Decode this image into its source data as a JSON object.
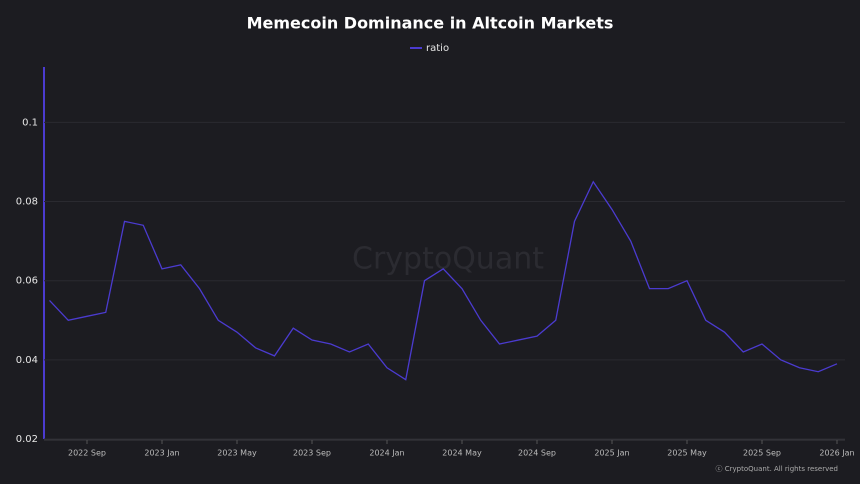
{
  "chart_data": {
    "type": "line",
    "title": "Memecoin Dominance in Altcoin Markets",
    "x": [
      "2022 Jul",
      "2022 Aug",
      "2022 Sep",
      "2022 Oct",
      "2022 Nov",
      "2022 Dec",
      "2023 Jan",
      "2023 Feb",
      "2023 Mar",
      "2023 Apr",
      "2023 May",
      "2023 Jun",
      "2023 Jul",
      "2023 Aug",
      "2023 Sep",
      "2023 Oct",
      "2023 Nov",
      "2023 Dec",
      "2024 Jan",
      "2024 Feb",
      "2024 Mar",
      "2024 Apr",
      "2024 May",
      "2024 Jun",
      "2024 Jul",
      "2024 Aug",
      "2024 Sep",
      "2024 Oct",
      "2024 Nov",
      "2024 Dec",
      "2025 Jan",
      "2025 Feb",
      "2025 Mar",
      "2025 Apr",
      "2025 May",
      "2025 Jun",
      "2025 Jul",
      "2025 Aug",
      "2025 Sep",
      "2025 Oct",
      "2025 Nov",
      "2025 Dec",
      "2026 Jan"
    ],
    "series": [
      {
        "name": "ratio",
        "color": "#4b3bd0",
        "values": [
          0.055,
          0.05,
          0.051,
          0.052,
          0.075,
          0.074,
          0.063,
          0.064,
          0.058,
          0.05,
          0.047,
          0.043,
          0.041,
          0.048,
          0.045,
          0.044,
          0.042,
          0.044,
          0.038,
          0.035,
          0.06,
          0.063,
          0.058,
          0.05,
          0.044,
          0.045,
          0.046,
          0.05,
          0.075,
          0.085,
          0.078,
          0.07,
          0.058,
          0.058,
          0.06,
          0.05,
          0.047,
          0.042,
          0.044,
          0.04,
          0.038,
          0.037,
          0.039
        ]
      }
    ],
    "xticks": [
      "2022 Sep",
      "2023 Jan",
      "2023 May",
      "2023 Sep",
      "2024 Jan",
      "2024 May",
      "2024 Sep",
      "2025 Jan",
      "2025 May",
      "2025 Sep",
      "2026 Jan"
    ],
    "ylim": [
      0.02,
      0.114
    ],
    "yticks": [
      0.02,
      0.04,
      0.06,
      0.08,
      0.1
    ],
    "grid": true,
    "legend": "top",
    "watermark": "CryptoQuant",
    "footer": "ⓒ CryptoQuant. All rights reserved"
  }
}
